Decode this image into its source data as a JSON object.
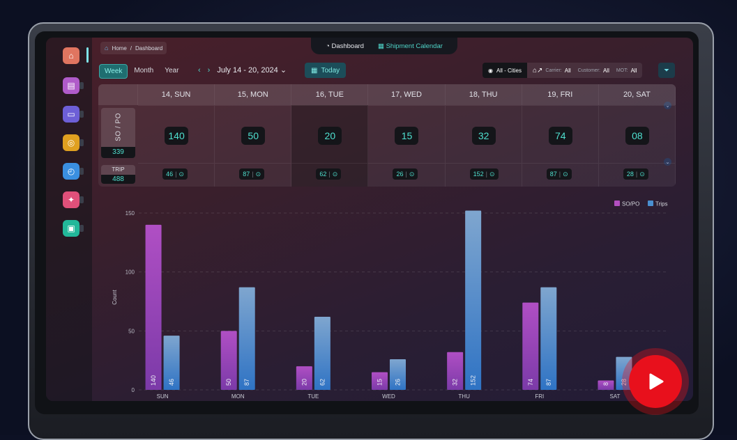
{
  "breadcrumb": {
    "home": "Home",
    "sep": "/",
    "current": "Dashboard"
  },
  "topnav": {
    "dashboard": "Dashboard",
    "shipment_calendar": "Shipment Calendar"
  },
  "view_tabs": [
    "Week",
    "Month",
    "Year"
  ],
  "active_view": "Week",
  "date_range": "July 14 - 20, 2024",
  "today_label": "Today",
  "filters": {
    "cities": "All - Cities",
    "carrier_label": "Carrier:",
    "carrier": "All",
    "customer_label": "Customer:",
    "customer": "All",
    "mot_label": "MOT:",
    "mot": "All"
  },
  "calendar": {
    "days": [
      "14, SUN",
      "15, MON",
      "16, TUE",
      "17, WED",
      "18, THU",
      "19, FRI",
      "20, SAT"
    ],
    "sopo_label": "SO / PO",
    "sopo_total": "339",
    "sopo_values": [
      "140",
      "50",
      "20",
      "15",
      "32",
      "74",
      "08"
    ],
    "trip_label": "TRIP",
    "trip_total": "488",
    "trip_values": [
      "46",
      "87",
      "62",
      "26",
      "152",
      "87",
      "28"
    ]
  },
  "chart_data": {
    "type": "bar",
    "categories": [
      "SUN",
      "MON",
      "TUE",
      "WED",
      "THU",
      "FRI",
      "SAT"
    ],
    "series": [
      {
        "name": "SO/PO",
        "values": [
          140,
          50,
          20,
          15,
          32,
          74,
          8
        ],
        "color": "#b24fc0"
      },
      {
        "name": "Trips",
        "values": [
          46,
          87,
          62,
          26,
          152,
          87,
          28
        ],
        "color": "#4a8fd0"
      }
    ],
    "ylabel": "Count",
    "yticks": [
      0,
      50,
      100,
      150
    ],
    "ylim": [
      0,
      160
    ],
    "grid": true,
    "legend": "top-right"
  },
  "colors": {
    "accent": "#4fd4c8",
    "sopo": "#b24fc0",
    "trips": "#4a8fd0",
    "play": "#e8101c"
  }
}
